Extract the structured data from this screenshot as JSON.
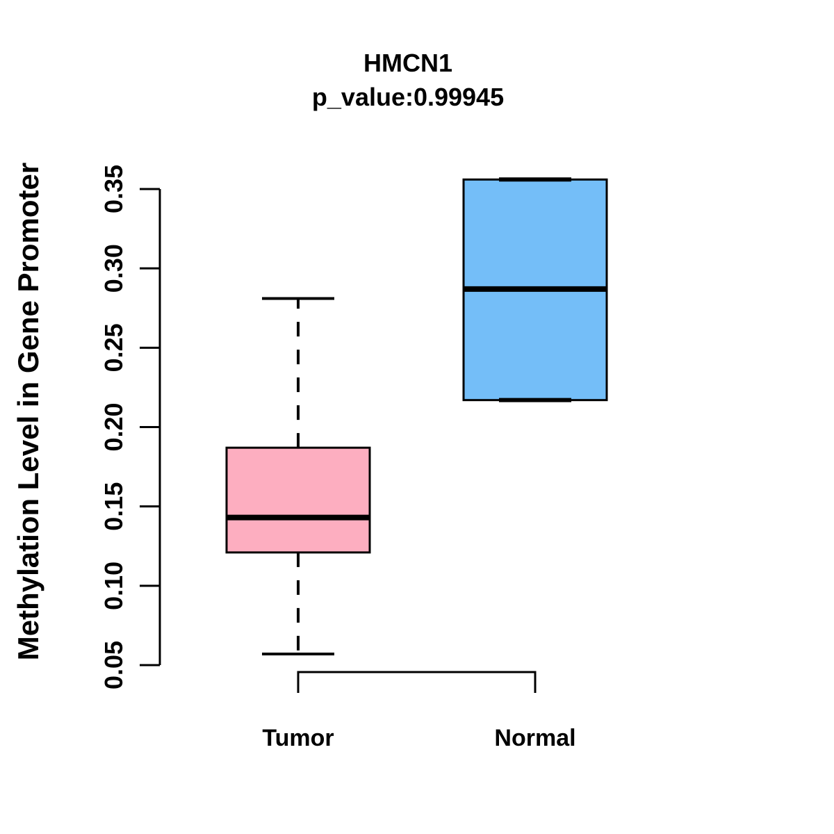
{
  "figure": {
    "title": "HMCN1",
    "subtitle": "p_value:0.99945"
  },
  "chart_data": {
    "type": "boxplot",
    "title": "HMCN1",
    "subtitle": "p_value:0.99945",
    "xlabel": "",
    "ylabel": "Methylation Level in Gene Promoter",
    "categories": [
      "Tumor",
      "Normal"
    ],
    "ylim": [
      0.05,
      0.35
    ],
    "yticks": [
      0.05,
      0.1,
      0.15,
      0.2,
      0.25,
      0.3,
      0.35
    ],
    "ytick_labels": [
      "0.05",
      "0.10",
      "0.15",
      "0.20",
      "0.25",
      "0.30",
      "0.35"
    ],
    "grid": false,
    "legend_position": "none",
    "background_color": "#FFFFFF",
    "line_color": "#000000",
    "series": [
      {
        "name": "Tumor",
        "fill_color": "#FDAEC0",
        "whisker_low": 0.057,
        "q1": 0.121,
        "median": 0.143,
        "q3": 0.187,
        "whisker_high": 0.281
      },
      {
        "name": "Normal",
        "fill_color": "#74BEF8",
        "whisker_low": 0.217,
        "q1": 0.217,
        "median": 0.287,
        "q3": 0.356,
        "whisker_high": 0.356
      }
    ]
  }
}
